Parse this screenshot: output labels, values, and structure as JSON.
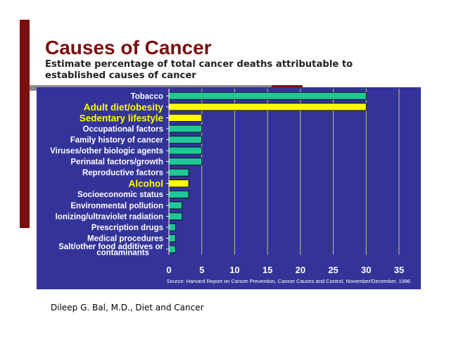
{
  "slide": {
    "title": "Causes of Cancer",
    "subtitle": "Estimate percentage of total cancer deaths attributable to established causes of cancer",
    "credit": "Dileep G. Bal, M.D., Diet and Cancer"
  },
  "colors": {
    "accent": "#7a0f0f",
    "panel": "#33339a",
    "bar": "#1fc896",
    "highlight": "#ffff00",
    "label": "#ffffff"
  },
  "chart_data": {
    "type": "bar",
    "orientation": "horizontal",
    "categories": [
      "Tobacco",
      "Adult diet/obesity",
      "Sedentary lifestyle",
      "Occupational factors",
      "Family history of cancer",
      "Viruses/other biologic agents",
      "Perinatal factors/growth",
      "Reproductive factors",
      "Alcohol",
      "Socioeconomic status",
      "Environmental pollution",
      "Ionizing/ultraviolet radiation",
      "Prescription drugs",
      "Medical procedures",
      "Salt/other food additives or contaminants"
    ],
    "highlighted": [
      false,
      true,
      true,
      false,
      false,
      false,
      false,
      false,
      true,
      false,
      false,
      false,
      false,
      false,
      false
    ],
    "values": [
      30,
      30,
      5,
      5,
      5,
      5,
      5,
      3,
      3,
      3,
      2,
      2,
      1,
      1,
      1
    ],
    "xlim": [
      0,
      35
    ],
    "xticks": [
      "0",
      "5",
      "10",
      "15",
      "20",
      "25",
      "30",
      "35"
    ],
    "grid": true,
    "source": "Source: Harvard Report on Cancer Prevention, Cancer Causes and Control, November/December, 1996"
  }
}
